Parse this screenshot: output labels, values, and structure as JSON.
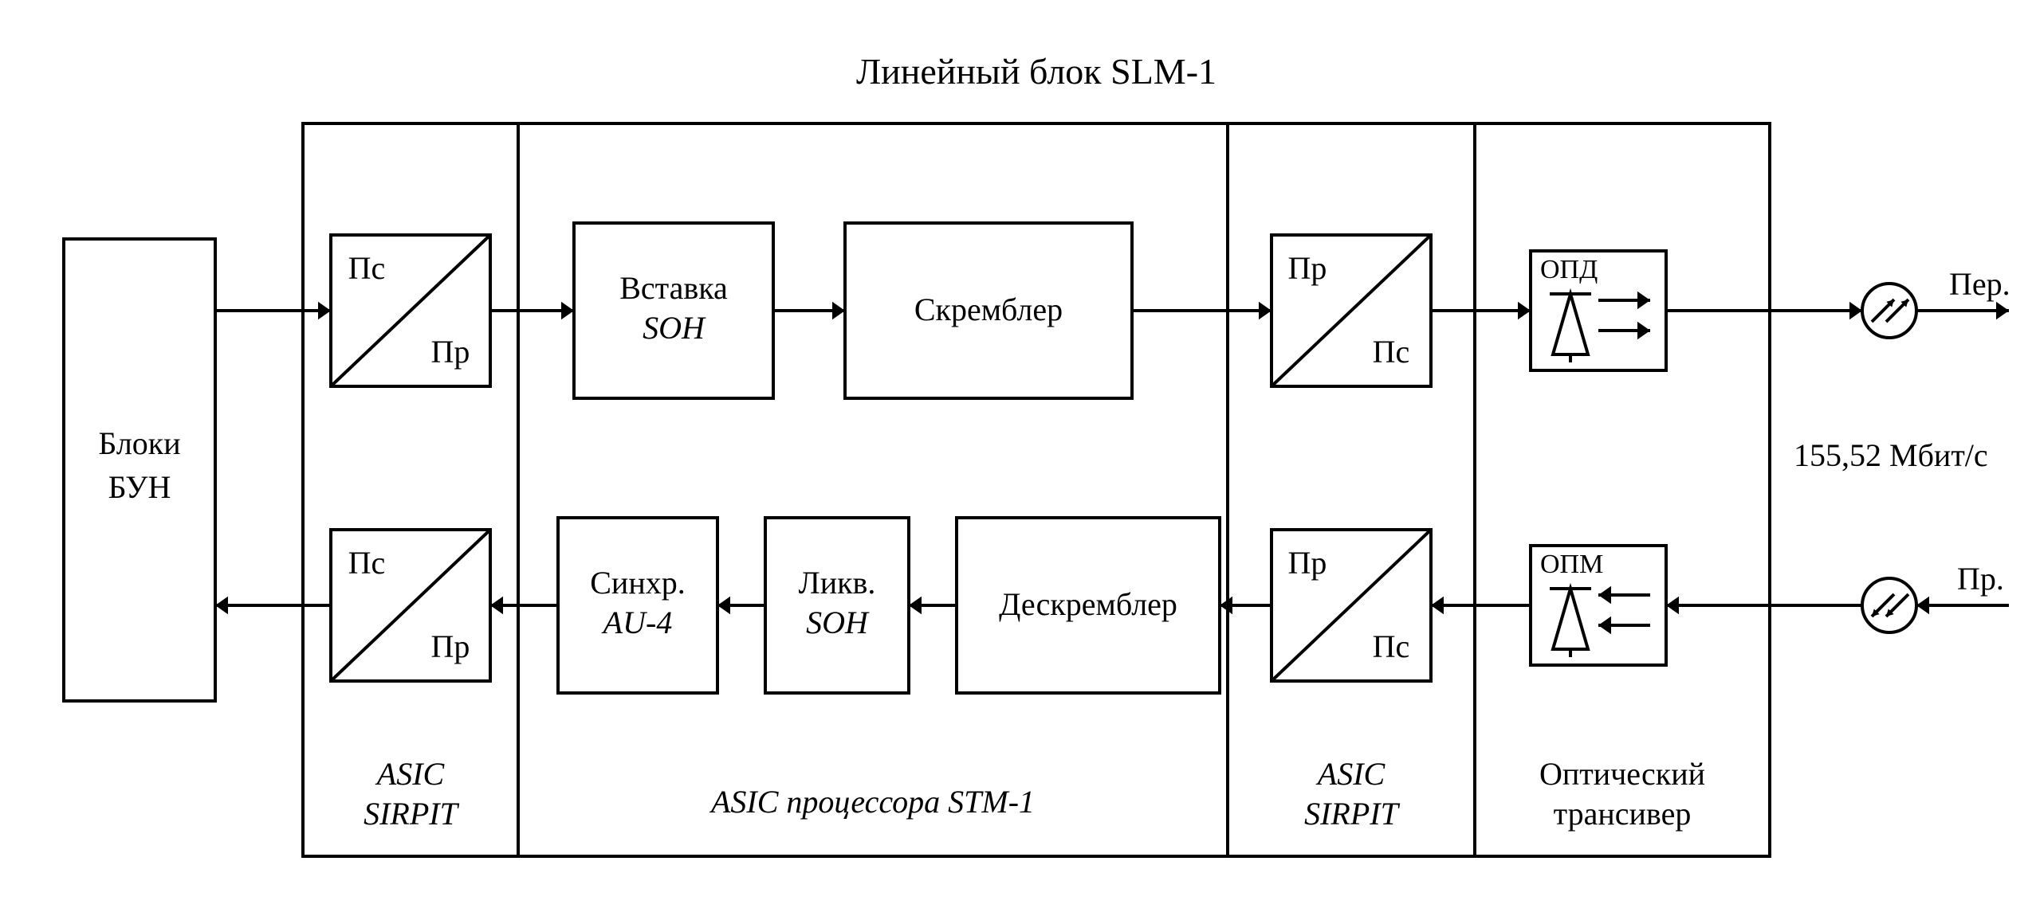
{
  "title": "Линейный блок SLM-1",
  "colors": {
    "bg": "#ffffff",
    "stroke": "#000000",
    "text": "#000000"
  },
  "stroke_width": 4,
  "font": {
    "title_size": 46,
    "block_size": 40,
    "small_size": 34,
    "label_size": 40
  },
  "left_block": {
    "line1": "Блоки",
    "line2": "БУН"
  },
  "asic_left": {
    "line1": "ASIC",
    "line2": "SIRPIT"
  },
  "asic_mid": "ASIC процессора STM-1",
  "asic_right": {
    "line1": "ASIC",
    "line2": "SIRPIT"
  },
  "trans": {
    "line1": "Оптический",
    "line2": "трансивер"
  },
  "ps": "Пс",
  "pr": "Пр",
  "soh_ins": {
    "l1": "Вставка",
    "l2": "SOH"
  },
  "scrambler": "Скремблер",
  "sync": {
    "l1": "Синхр.",
    "l2": "AU-4"
  },
  "likv": {
    "l1": "Ликв.",
    "l2": "SOH"
  },
  "descr": "Дескремблер",
  "opd": "ОПД",
  "opm": "ОПМ",
  "per": "Пер.",
  "prx": "Пр.",
  "rate": "155,52 Мбит/с"
}
